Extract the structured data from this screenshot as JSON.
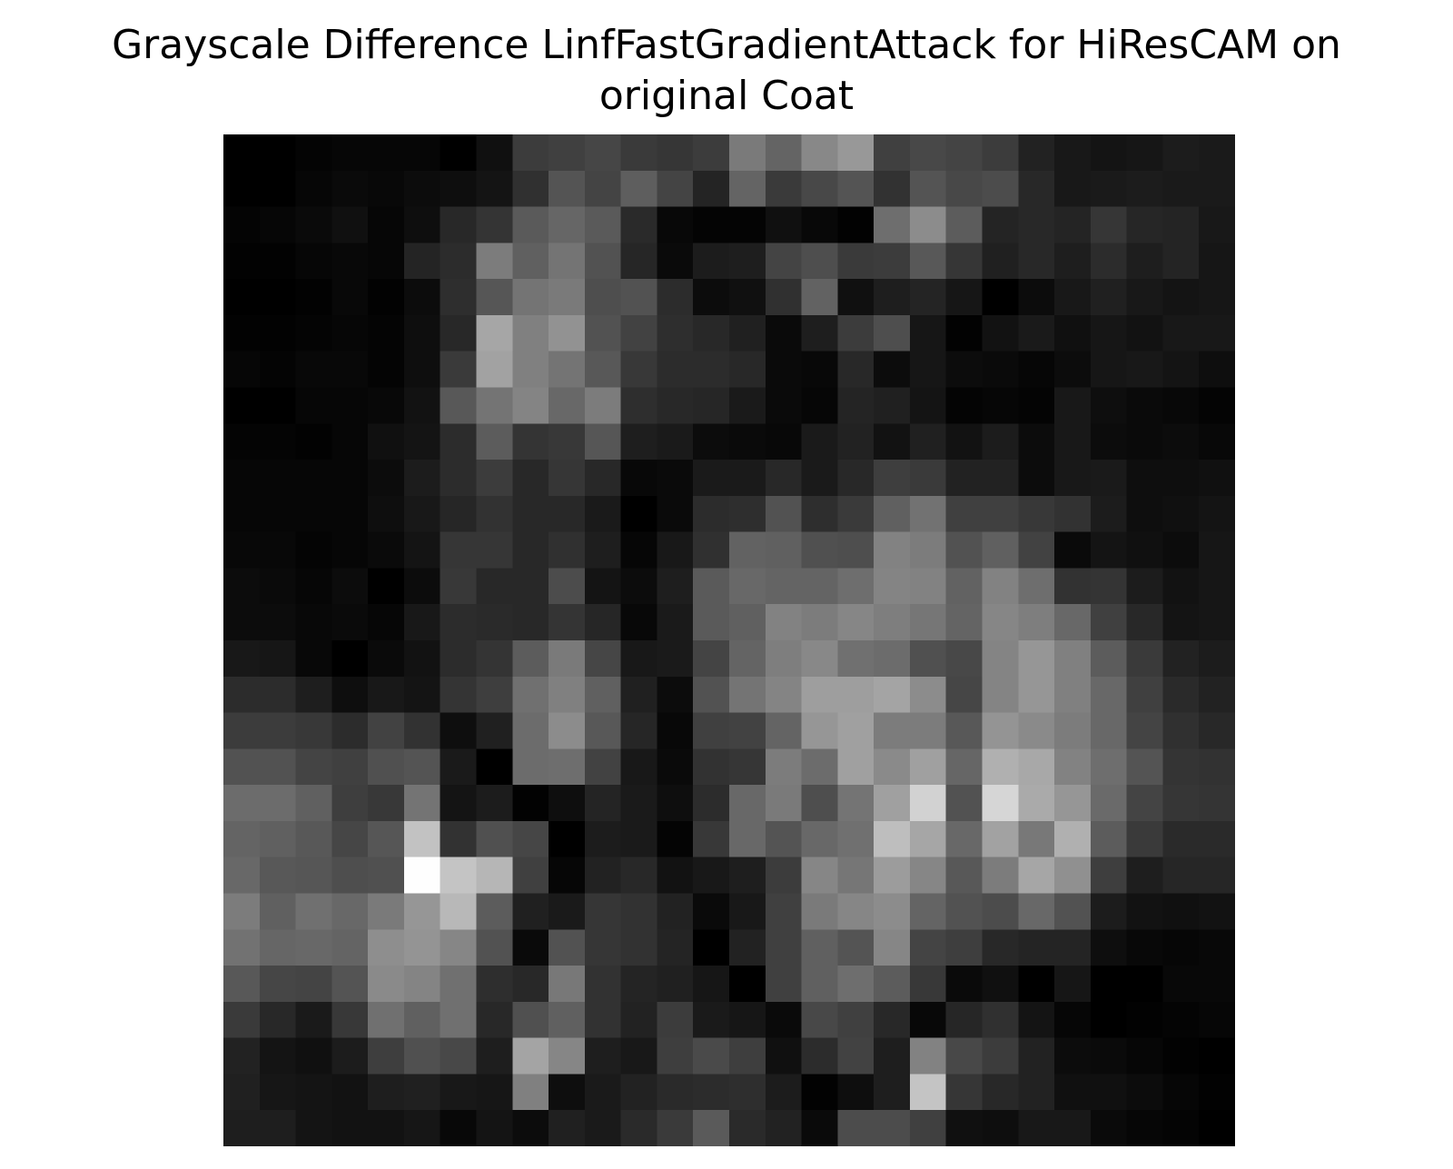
{
  "chart_data": {
    "type": "heatmap",
    "title": "Grayscale Difference LinfFastGradientAttack for HiResCAM on original Coat",
    "title_lines": [
      "Grayscale Difference LinfFastGradientAttack for HiResCAM on",
      "original Coat"
    ],
    "colormap": "gray",
    "axes_visible": false,
    "grid": false,
    "vmin": 0,
    "vmax": 255,
    "rows": 28,
    "cols": 28,
    "values": [
      [
        0,
        0,
        4,
        6,
        6,
        6,
        0,
        16,
        60,
        64,
        70,
        58,
        54,
        60,
        122,
        100,
        136,
        152,
        64,
        72,
        68,
        60,
        34,
        24,
        20,
        22,
        28,
        26
      ],
      [
        0,
        0,
        6,
        10,
        8,
        12,
        14,
        20,
        48,
        84,
        68,
        94,
        68,
        36,
        100,
        58,
        72,
        84,
        50,
        84,
        72,
        76,
        40,
        24,
        26,
        28,
        26,
        26
      ],
      [
        4,
        6,
        10,
        16,
        6,
        14,
        40,
        52,
        90,
        102,
        90,
        42,
        8,
        4,
        4,
        16,
        8,
        2,
        110,
        140,
        92,
        36,
        40,
        36,
        54,
        38,
        36,
        24
      ],
      [
        2,
        2,
        6,
        8,
        6,
        36,
        44,
        124,
        96,
        116,
        82,
        38,
        10,
        28,
        30,
        68,
        78,
        58,
        60,
        88,
        54,
        32,
        40,
        30,
        44,
        30,
        36,
        22
      ],
      [
        0,
        0,
        2,
        8,
        2,
        12,
        46,
        86,
        116,
        122,
        78,
        82,
        44,
        12,
        16,
        48,
        98,
        16,
        30,
        36,
        22,
        0,
        12,
        24,
        32,
        24,
        20,
        22
      ],
      [
        2,
        2,
        4,
        6,
        4,
        14,
        40,
        166,
        128,
        146,
        82,
        66,
        46,
        40,
        32,
        10,
        30,
        60,
        78,
        22,
        2,
        18,
        26,
        16,
        22,
        18,
        24,
        24
      ],
      [
        6,
        4,
        8,
        8,
        4,
        14,
        58,
        162,
        128,
        116,
        88,
        56,
        44,
        44,
        40,
        10,
        8,
        40,
        12,
        22,
        12,
        10,
        6,
        12,
        22,
        24,
        20,
        14
      ],
      [
        0,
        0,
        6,
        6,
        8,
        18,
        88,
        116,
        132,
        104,
        124,
        46,
        40,
        38,
        26,
        10,
        6,
        36,
        32,
        20,
        4,
        6,
        4,
        24,
        14,
        10,
        8,
        4
      ],
      [
        4,
        4,
        2,
        6,
        16,
        20,
        44,
        92,
        52,
        56,
        86,
        30,
        26,
        12,
        10,
        8,
        26,
        34,
        18,
        32,
        18,
        28,
        12,
        24,
        12,
        10,
        12,
        8
      ],
      [
        6,
        6,
        6,
        6,
        12,
        28,
        44,
        60,
        40,
        54,
        40,
        8,
        10,
        26,
        26,
        40,
        26,
        40,
        62,
        58,
        34,
        34,
        12,
        24,
        26,
        14,
        14,
        16
      ],
      [
        6,
        6,
        6,
        6,
        14,
        24,
        38,
        50,
        40,
        40,
        26,
        0,
        10,
        44,
        46,
        82,
        46,
        58,
        96,
        114,
        64,
        64,
        56,
        50,
        28,
        14,
        16,
        20
      ],
      [
        8,
        8,
        4,
        6,
        10,
        20,
        54,
        54,
        40,
        48,
        30,
        6,
        24,
        48,
        98,
        96,
        80,
        78,
        130,
        124,
        82,
        96,
        66,
        10,
        20,
        16,
        12,
        22
      ],
      [
        12,
        10,
        6,
        12,
        0,
        12,
        56,
        40,
        40,
        76,
        20,
        12,
        30,
        90,
        104,
        100,
        100,
        110,
        132,
        130,
        98,
        130,
        110,
        50,
        52,
        28,
        18,
        22
      ],
      [
        12,
        12,
        8,
        10,
        6,
        24,
        44,
        42,
        40,
        52,
        38,
        8,
        26,
        90,
        96,
        130,
        124,
        134,
        126,
        118,
        100,
        134,
        126,
        104,
        64,
        40,
        20,
        22
      ],
      [
        24,
        22,
        8,
        0,
        10,
        18,
        44,
        52,
        92,
        122,
        70,
        24,
        26,
        68,
        100,
        126,
        136,
        112,
        108,
        80,
        72,
        132,
        150,
        128,
        92,
        58,
        34,
        28
      ],
      [
        44,
        44,
        30,
        14,
        24,
        20,
        52,
        62,
        112,
        128,
        96,
        32,
        12,
        82,
        116,
        132,
        158,
        158,
        164,
        140,
        70,
        132,
        150,
        128,
        104,
        64,
        42,
        34
      ],
      [
        60,
        60,
        56,
        44,
        66,
        50,
        14,
        32,
        108,
        140,
        88,
        38,
        8,
        64,
        66,
        100,
        150,
        160,
        124,
        124,
        88,
        148,
        138,
        124,
        104,
        68,
        48,
        40
      ],
      [
        82,
        82,
        68,
        64,
        80,
        84,
        26,
        0,
        108,
        110,
        66,
        24,
        10,
        50,
        54,
        124,
        108,
        160,
        138,
        160,
        102,
        176,
        168,
        130,
        110,
        84,
        52,
        50
      ],
      [
        108,
        108,
        96,
        62,
        56,
        116,
        20,
        28,
        2,
        14,
        36,
        26,
        14,
        44,
        104,
        122,
        78,
        116,
        160,
        210,
        82,
        214,
        170,
        150,
        106,
        68,
        54,
        52
      ],
      [
        100,
        96,
        88,
        70,
        86,
        194,
        50,
        80,
        70,
        0,
        28,
        26,
        4,
        56,
        104,
        84,
        104,
        112,
        190,
        166,
        104,
        162,
        120,
        176,
        92,
        58,
        42,
        42
      ],
      [
        104,
        88,
        86,
        78,
        80,
        254,
        196,
        182,
        64,
        6,
        34,
        40,
        18,
        24,
        30,
        60,
        134,
        118,
        156,
        134,
        88,
        124,
        166,
        144,
        62,
        30,
        38,
        38
      ],
      [
        124,
        96,
        112,
        104,
        122,
        150,
        184,
        92,
        32,
        26,
        54,
        50,
        34,
        10,
        24,
        64,
        122,
        134,
        140,
        100,
        82,
        76,
        104,
        82,
        28,
        18,
        16,
        18
      ],
      [
        114,
        102,
        104,
        100,
        142,
        148,
        134,
        82,
        10,
        82,
        54,
        50,
        36,
        0,
        34,
        64,
        96,
        84,
        134,
        68,
        62,
        40,
        36,
        36,
        14,
        8,
        6,
        8
      ],
      [
        88,
        70,
        68,
        84,
        138,
        132,
        112,
        46,
        40,
        120,
        50,
        36,
        32,
        22,
        0,
        64,
        96,
        110,
        92,
        56,
        10,
        16,
        0,
        22,
        0,
        0,
        8,
        8
      ],
      [
        58,
        40,
        26,
        56,
        112,
        96,
        112,
        40,
        80,
        96,
        50,
        34,
        60,
        26,
        22,
        10,
        72,
        64,
        40,
        8,
        38,
        48,
        20,
        6,
        0,
        2,
        4,
        6
      ],
      [
        34,
        20,
        16,
        28,
        62,
        80,
        72,
        30,
        164,
        134,
        30,
        24,
        62,
        74,
        62,
        16,
        44,
        66,
        30,
        130,
        72,
        60,
        34,
        12,
        10,
        6,
        2,
        0
      ],
      [
        32,
        22,
        20,
        18,
        30,
        32,
        24,
        22,
        128,
        14,
        26,
        34,
        42,
        44,
        46,
        28,
        2,
        14,
        30,
        196,
        54,
        40,
        34,
        16,
        16,
        12,
        6,
        2
      ],
      [
        30,
        30,
        20,
        18,
        18,
        22,
        8,
        20,
        12,
        32,
        26,
        42,
        58,
        90,
        42,
        34,
        10,
        76,
        76,
        64,
        16,
        14,
        24,
        24,
        10,
        6,
        4,
        0
      ]
    ]
  }
}
